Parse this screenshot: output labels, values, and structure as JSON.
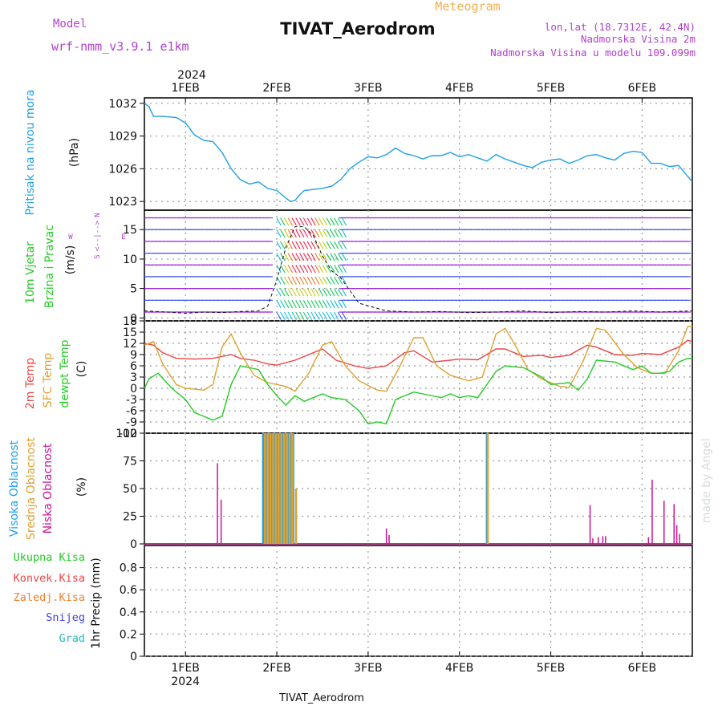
{
  "header": {
    "meteogram_label": "Meteogram",
    "station_title": "TIVAT_Aerodrom",
    "model_label": "Model",
    "model_name": "wrf-nmm_v3.9.1 e1km",
    "coords": "lon,lat (18.7312E, 42.4N)",
    "altitude": "Nadmorska Visina 2m",
    "model_altitude": "Nadmorska Visina u modelu 109.099m",
    "year": "2024",
    "bottom_title": "TIVAT_Aerodrom",
    "credit": "made by Angel"
  },
  "time_axis": {
    "ticks": [
      "1FEB",
      "2FEB",
      "3FEB",
      "4FEB",
      "5FEB",
      "6FEB"
    ],
    "year_label": "2024",
    "range_days": [
      0.55,
      6.55
    ]
  },
  "colors": {
    "pressure": "#1ea0e6",
    "wind_label": "#22cc22",
    "compass": "#b040d0",
    "temp2m": "#ee4444",
    "sfc_temp": "#e0a030",
    "dewpoint": "#22cc22",
    "cloud_high": "#1ea0e6",
    "cloud_mid": "#e0a030",
    "cloud_low": "#cc1199",
    "title_purple": "#b040d0",
    "meteogram_orange": "#f0b050",
    "precip_total": "#22cc22",
    "precip_conv": "#ee4444",
    "precip_frozen": "#f08030",
    "precip_snow": "#4040ee",
    "precip_graupel": "#22bbbb"
  },
  "chart_data": [
    {
      "type": "line",
      "panel": "pressure",
      "side_label": "Pritisak na nivou mora",
      "unit_label": "(hPa)",
      "ylim": [
        1022.2,
        1032.5
      ],
      "yticks": [
        "1023",
        "1026",
        "1029",
        "1032"
      ],
      "series": [
        {
          "x": [
            0.55,
            0.6,
            0.65,
            0.75,
            0.9,
            1.0,
            1.1,
            1.2,
            1.3,
            1.4,
            1.5,
            1.6,
            1.7,
            1.8,
            1.9,
            2.0,
            2.1,
            2.15,
            2.2,
            2.25,
            2.3,
            2.4,
            2.5,
            2.6,
            2.7,
            2.8,
            2.9,
            3.0,
            3.1,
            3.2,
            3.3,
            3.4,
            3.5,
            3.6,
            3.7,
            3.8,
            3.9,
            4.0,
            4.1,
            4.2,
            4.3,
            4.4,
            4.5,
            4.6,
            4.7,
            4.8,
            4.9,
            5.0,
            5.1,
            5.2,
            5.3,
            5.4,
            5.5,
            5.6,
            5.7,
            5.8,
            5.9,
            6.0,
            6.1,
            6.2,
            6.3,
            6.4,
            6.5,
            6.55
          ],
          "values": [
            1032.0,
            1031.7,
            1030.8,
            1030.8,
            1030.7,
            1030.2,
            1029.1,
            1028.6,
            1028.5,
            1027.5,
            1026.0,
            1025.0,
            1024.6,
            1024.8,
            1024.2,
            1024.0,
            1023.3,
            1023.0,
            1023.1,
            1023.6,
            1024.0,
            1024.1,
            1024.2,
            1024.4,
            1025.0,
            1026.0,
            1026.6,
            1027.1,
            1027.0,
            1027.3,
            1027.9,
            1027.4,
            1027.2,
            1026.9,
            1027.2,
            1027.2,
            1027.5,
            1027.1,
            1027.3,
            1027.0,
            1026.7,
            1027.3,
            1026.9,
            1026.6,
            1026.3,
            1026.1,
            1026.6,
            1026.8,
            1026.9,
            1026.5,
            1026.8,
            1027.2,
            1027.3,
            1027.0,
            1026.8,
            1027.4,
            1027.6,
            1027.5,
            1026.5,
            1026.5,
            1026.2,
            1026.3,
            1025.3,
            1024.8
          ]
        }
      ]
    },
    {
      "type": "scatter",
      "panel": "wind",
      "side_label_1": "10m Vjetar",
      "side_label_2": "Brzina i Pravac",
      "unit_label": "(m/s)",
      "compass": [
        "N",
        "E",
        "S",
        "W"
      ],
      "ylim": [
        -0.5,
        18.3
      ],
      "yticks": [
        "0",
        "5",
        "10",
        "15"
      ],
      "series": [
        {
          "name": "wind speed",
          "x": [
            0.55,
            0.8,
            1.0,
            1.2,
            1.4,
            1.6,
            1.8,
            1.9,
            2.0,
            2.1,
            2.2,
            2.3,
            2.4,
            2.5,
            2.6,
            2.7,
            2.9,
            3.2,
            3.5,
            3.8,
            4.1,
            4.4,
            4.7,
            5.0,
            5.3,
            5.6,
            5.9,
            6.2,
            6.55
          ],
          "values": [
            1.2,
            1.0,
            0.8,
            1.0,
            0.9,
            1.1,
            1.2,
            2.0,
            6.5,
            12.0,
            15.5,
            15.5,
            14.0,
            10.5,
            8.0,
            6.8,
            2.5,
            1.2,
            1.0,
            1.1,
            0.9,
            1.0,
            1.2,
            0.9,
            1.1,
            1.0,
            1.2,
            1.0,
            1.2
          ]
        }
      ]
    },
    {
      "type": "line",
      "panel": "temperature",
      "side_label_1": "2m Temp",
      "side_label_2": "SFC Temp",
      "side_label_3": "dewpt Temp",
      "unit_label": "(C)",
      "ylim": [
        -12,
        18
      ],
      "yticks": [
        "-12",
        "-9",
        "-6",
        "-3",
        "0",
        "3",
        "6",
        "9",
        "12",
        "15",
        "18"
      ],
      "series": [
        {
          "name": "2m Temp",
          "x": [
            0.55,
            0.65,
            0.75,
            0.9,
            1.1,
            1.3,
            1.5,
            1.6,
            1.75,
            1.9,
            2.0,
            2.2,
            2.4,
            2.5,
            2.65,
            2.85,
            3.0,
            3.2,
            3.4,
            3.5,
            3.7,
            3.9,
            4.0,
            4.2,
            4.4,
            4.5,
            4.7,
            4.9,
            5.0,
            5.2,
            5.4,
            5.5,
            5.7,
            5.9,
            6.0,
            6.2,
            6.4,
            6.5,
            6.55
          ],
          "values": [
            12.0,
            11.5,
            9.5,
            8.0,
            7.8,
            8.0,
            9.0,
            8.0,
            7.5,
            6.5,
            6.2,
            7.5,
            9.5,
            10.5,
            7.5,
            6.0,
            5.3,
            6.0,
            9.5,
            10.0,
            7.0,
            7.5,
            7.8,
            7.6,
            10.5,
            10.5,
            8.5,
            8.8,
            8.2,
            8.8,
            11.5,
            11.0,
            9.0,
            8.8,
            9.3,
            9.0,
            11.0,
            12.8,
            12.5
          ]
        },
        {
          "name": "SFC Temp",
          "x": [
            0.55,
            0.65,
            0.75,
            0.9,
            1.0,
            1.2,
            1.3,
            1.4,
            1.5,
            1.6,
            1.75,
            1.9,
            2.1,
            2.2,
            2.35,
            2.5,
            2.6,
            2.75,
            2.9,
            3.1,
            3.2,
            3.35,
            3.5,
            3.6,
            3.75,
            3.9,
            4.1,
            4.25,
            4.4,
            4.5,
            4.6,
            4.75,
            4.9,
            5.1,
            5.2,
            5.35,
            5.5,
            5.6,
            5.8,
            5.95,
            6.1,
            6.25,
            6.4,
            6.5,
            6.55
          ],
          "values": [
            11.5,
            12.5,
            6.5,
            1.0,
            0.0,
            -0.5,
            1.0,
            11.0,
            14.5,
            9.5,
            3.5,
            1.5,
            0.5,
            -0.8,
            4.0,
            11.5,
            12.5,
            6.0,
            2.0,
            -0.5,
            -0.8,
            6.0,
            13.5,
            13.5,
            6.0,
            3.5,
            2.0,
            3.0,
            14.5,
            16.0,
            12.0,
            5.0,
            2.5,
            0.5,
            0.2,
            7.0,
            16.0,
            15.5,
            9.0,
            5.5,
            4.0,
            4.0,
            10.0,
            16.5,
            16.5
          ]
        },
        {
          "name": "dewpt Temp",
          "x": [
            0.55,
            0.6,
            0.7,
            0.85,
            1.0,
            1.1,
            1.2,
            1.3,
            1.4,
            1.5,
            1.6,
            1.8,
            1.9,
            2.0,
            2.1,
            2.2,
            2.3,
            2.5,
            2.6,
            2.75,
            2.9,
            3.0,
            3.1,
            3.2,
            3.3,
            3.5,
            3.6,
            3.8,
            3.9,
            4.0,
            4.1,
            4.2,
            4.4,
            4.5,
            4.7,
            4.9,
            5.0,
            5.2,
            5.3,
            5.4,
            5.5,
            5.7,
            5.9,
            6.0,
            6.1,
            6.2,
            6.3,
            6.4,
            6.5,
            6.55
          ],
          "values": [
            0.0,
            2.5,
            4.0,
            0.0,
            -3.0,
            -6.5,
            -7.5,
            -8.5,
            -7.5,
            1.0,
            6.0,
            5.0,
            1.0,
            -2.0,
            -4.5,
            -2.0,
            -3.5,
            -1.5,
            -2.5,
            -3.0,
            -6.0,
            -9.5,
            -9.0,
            -9.5,
            -3.0,
            -1.0,
            -1.5,
            -2.5,
            -1.5,
            -2.5,
            -2.0,
            -2.5,
            4.5,
            6.0,
            5.5,
            3.0,
            1.0,
            1.5,
            -0.5,
            2.5,
            7.5,
            7.0,
            5.0,
            6.0,
            4.0,
            4.0,
            4.5,
            7.0,
            8.0,
            8.0
          ]
        }
      ]
    },
    {
      "type": "bar",
      "panel": "cloud_cover",
      "side_label_1": "Visoka Oblacnost",
      "side_label_2": "Srednja Oblacnost",
      "side_label_3": "Niska Oblacnost",
      "unit_label": "(%)",
      "ylim": [
        0,
        100
      ],
      "yticks": [
        "0",
        "25",
        "50",
        "75",
        "100"
      ],
      "series": [
        {
          "name": "Visoka Oblacnost",
          "x": [
            1.85,
            1.88,
            1.91,
            1.94,
            1.97,
            2.0,
            2.03,
            2.06,
            2.09,
            2.12,
            2.15,
            2.18,
            4.3
          ],
          "values": [
            100,
            100,
            100,
            100,
            100,
            100,
            100,
            100,
            100,
            100,
            100,
            100,
            100
          ]
        },
        {
          "name": "Srednja Oblacnost",
          "x": [
            1.87,
            1.9,
            1.93,
            1.96,
            1.99,
            2.02,
            2.05,
            2.08,
            2.11,
            2.14,
            2.17,
            2.21,
            4.31
          ],
          "values": [
            100,
            100,
            100,
            100,
            100,
            100,
            100,
            100,
            100,
            100,
            100,
            50,
            100
          ]
        },
        {
          "name": "Niska Oblacnost",
          "x": [
            1.35,
            1.39,
            3.2,
            3.23,
            5.43,
            5.46,
            5.52,
            5.57,
            5.6,
            6.07,
            6.11,
            6.24,
            6.35,
            6.38,
            6.41
          ],
          "values": [
            73,
            40,
            14,
            8,
            35,
            5,
            6,
            7,
            7,
            6,
            58,
            39,
            36,
            17,
            9
          ]
        }
      ]
    },
    {
      "type": "bar",
      "panel": "precip",
      "side_labels": [
        "Ukupna Kisa",
        "Konvek.Kisa",
        "Zaledj.Kisa",
        "Snijeg",
        "Grad"
      ],
      "unit_label": "1hr Precip (mm)",
      "ylim": [
        0,
        1.0
      ],
      "yticks": [
        "0",
        "0.2",
        "0.4",
        "0.6",
        "0.8"
      ],
      "series": []
    }
  ]
}
